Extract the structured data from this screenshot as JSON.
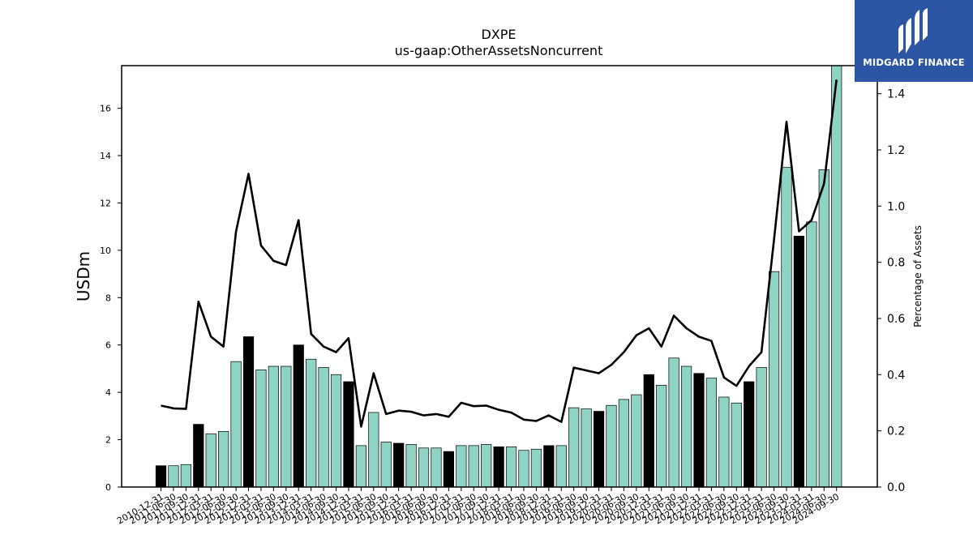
{
  "chart_data": {
    "type": "bar",
    "title": "DXPE",
    "subtitle": "us-gaap:OtherAssetsNoncurrent",
    "ylabel": "USDm",
    "y2label": "Percentage of Assets",
    "ylim": [
      0,
      17.8
    ],
    "y2lim": [
      0,
      1.5
    ],
    "yticks": [
      "0",
      "2",
      "4",
      "6",
      "8",
      "10",
      "12",
      "14",
      "16"
    ],
    "y2ticks": [
      "0.0",
      "0.2",
      "0.4",
      "0.6",
      "0.8",
      "1.0",
      "1.2",
      "1.4"
    ],
    "colors": {
      "annual": "#000000",
      "quarter": "#8fd3c5",
      "line": "#000000"
    },
    "categories": [
      "2010-12-31",
      "2011-06-30",
      "2011-09-30",
      "2011-12-31",
      "2012-03-31",
      "2012-06-30",
      "2012-09-30",
      "2012-12-31",
      "2013-03-31",
      "2013-06-30",
      "2013-09-30",
      "2013-12-31",
      "2014-03-31",
      "2014-06-30",
      "2014-09-30",
      "2014-12-31",
      "2015-03-31",
      "2015-06-30",
      "2015-09-30",
      "2015-12-31",
      "2016-03-31",
      "2016-06-30",
      "2016-09-30",
      "2016-12-31",
      "2017-03-31",
      "2017-06-30",
      "2017-09-30",
      "2017-12-31",
      "2018-03-31",
      "2018-06-30",
      "2018-09-30",
      "2018-12-31",
      "2019-03-31",
      "2019-06-30",
      "2019-09-30",
      "2019-12-31",
      "2020-03-31",
      "2020-06-30",
      "2020-09-30",
      "2020-12-31",
      "2021-03-31",
      "2021-06-30",
      "2021-09-30",
      "2021-12-31",
      "2022-03-31",
      "2022-06-30",
      "2022-09-30",
      "2022-12-31",
      "2023-03-31",
      "2023-06-30",
      "2023-09-30",
      "2023-12-31",
      "2024-03-31",
      "2024-06-30",
      "2024-09-30"
    ],
    "series": [
      {
        "values": [
          0.9,
          0.9,
          0.95,
          2.65,
          2.25,
          2.35,
          5.3,
          6.35,
          4.95,
          5.1,
          5.1,
          6.0,
          5.4,
          5.05,
          4.75,
          4.45,
          1.75,
          3.15,
          1.9,
          1.85,
          1.8,
          1.65,
          1.65,
          1.5,
          1.75,
          1.75,
          1.8,
          1.7,
          1.7,
          1.55,
          1.6,
          1.75,
          1.75,
          3.35,
          3.3,
          3.2,
          3.45,
          3.7,
          3.9,
          4.75,
          4.3,
          5.45,
          5.1,
          4.8,
          4.6,
          3.8,
          3.55,
          4.45,
          5.05,
          9.1,
          13.5,
          10.6,
          11.2,
          13.4,
          17.8
        ],
        "kinds": [
          "A",
          "Q",
          "Q",
          "A",
          "Q",
          "Q",
          "Q",
          "A",
          "Q",
          "Q",
          "Q",
          "A",
          "Q",
          "Q",
          "Q",
          "A",
          "Q",
          "Q",
          "Q",
          "A",
          "Q",
          "Q",
          "Q",
          "A",
          "Q",
          "Q",
          "Q",
          "A",
          "Q",
          "Q",
          "Q",
          "A",
          "Q",
          "Q",
          "Q",
          "A",
          "Q",
          "Q",
          "Q",
          "A",
          "Q",
          "Q",
          "Q",
          "A",
          "Q",
          "Q",
          "Q",
          "A",
          "Q",
          "Q",
          "Q",
          "A",
          "Q",
          "Q",
          "Q"
        ]
      },
      {
        "axis": "y2",
        "values": [
          0.29,
          0.28,
          0.278,
          0.66,
          0.535,
          0.5,
          0.91,
          1.115,
          0.86,
          0.805,
          0.79,
          0.95,
          0.545,
          0.5,
          0.48,
          0.53,
          0.215,
          0.405,
          0.26,
          0.272,
          0.268,
          0.255,
          0.26,
          0.25,
          0.3,
          0.288,
          0.29,
          0.275,
          0.265,
          0.24,
          0.235,
          0.255,
          0.232,
          0.425,
          0.415,
          0.405,
          0.435,
          0.48,
          0.54,
          0.565,
          0.5,
          0.61,
          0.565,
          0.535,
          0.52,
          0.39,
          0.36,
          0.43,
          0.48,
          0.88,
          1.3,
          0.91,
          0.95,
          1.08,
          1.45
        ]
      }
    ]
  },
  "logo": {
    "text": "MIDGARD FINANCE"
  }
}
